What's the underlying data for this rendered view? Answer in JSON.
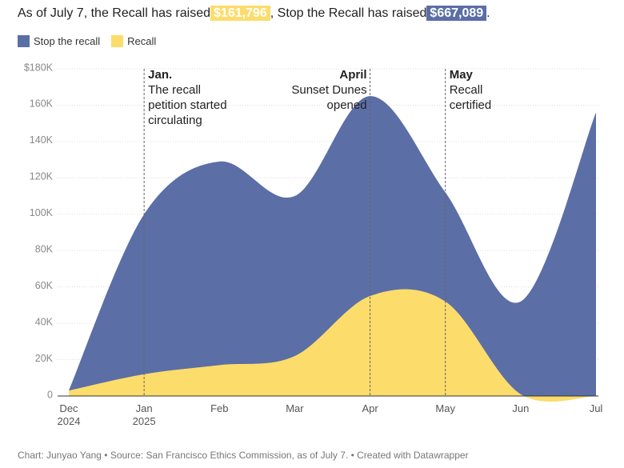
{
  "chart_data": {
    "type": "area",
    "title_parts": [
      "As of July 7, the Recall has raised",
      "$161,796",
      ", Stop the Recall has raised",
      "$667,089",
      "."
    ],
    "categories": [
      "Dec\n2024",
      "Jan\n2025",
      "Feb",
      "Mar",
      "Apr",
      "May",
      "Jun",
      "Jul"
    ],
    "series": [
      {
        "name": "Stop the recall",
        "color": "#5b6ea6",
        "values": [
          3000,
          100000,
          129000,
          110000,
          165000,
          112000,
          52000,
          156000
        ]
      },
      {
        "name": "Recall",
        "color": "#fcdc6b",
        "values": [
          3000,
          12000,
          17000,
          22000,
          55000,
          52000,
          1000,
          0
        ]
      }
    ],
    "ylim": [
      0,
      180000
    ],
    "yticks": [
      0,
      {
        "value": 20000,
        "label": "20K"
      },
      {
        "value": 40000,
        "label": "40K"
      },
      {
        "value": 60000,
        "label": "60K"
      },
      {
        "value": 80000,
        "label": "80K"
      },
      {
        "value": 100000,
        "label": "100K"
      },
      {
        "value": 120000,
        "label": "120K"
      },
      {
        "value": 140000,
        "label": "140K"
      },
      {
        "value": 160000,
        "label": "160K"
      },
      {
        "value": 180000,
        "label": "$180K"
      }
    ],
    "grid": true,
    "legend": "top-left",
    "annotations": [
      {
        "at": "Jan\n2025",
        "heading": "Jan.",
        "text": "The recall\npetition started\ncirculating",
        "align": "left"
      },
      {
        "at": "Apr",
        "heading": "April",
        "text": "Sunset Dunes\nopened",
        "align": "right"
      },
      {
        "at": "May",
        "heading": "May",
        "text": "Recall\ncertified",
        "align": "left"
      }
    ],
    "footer": "Chart: Junyao Yang • Source: San Francisco Ethics Commission, as of July 7. • Created with Datawrapper"
  }
}
